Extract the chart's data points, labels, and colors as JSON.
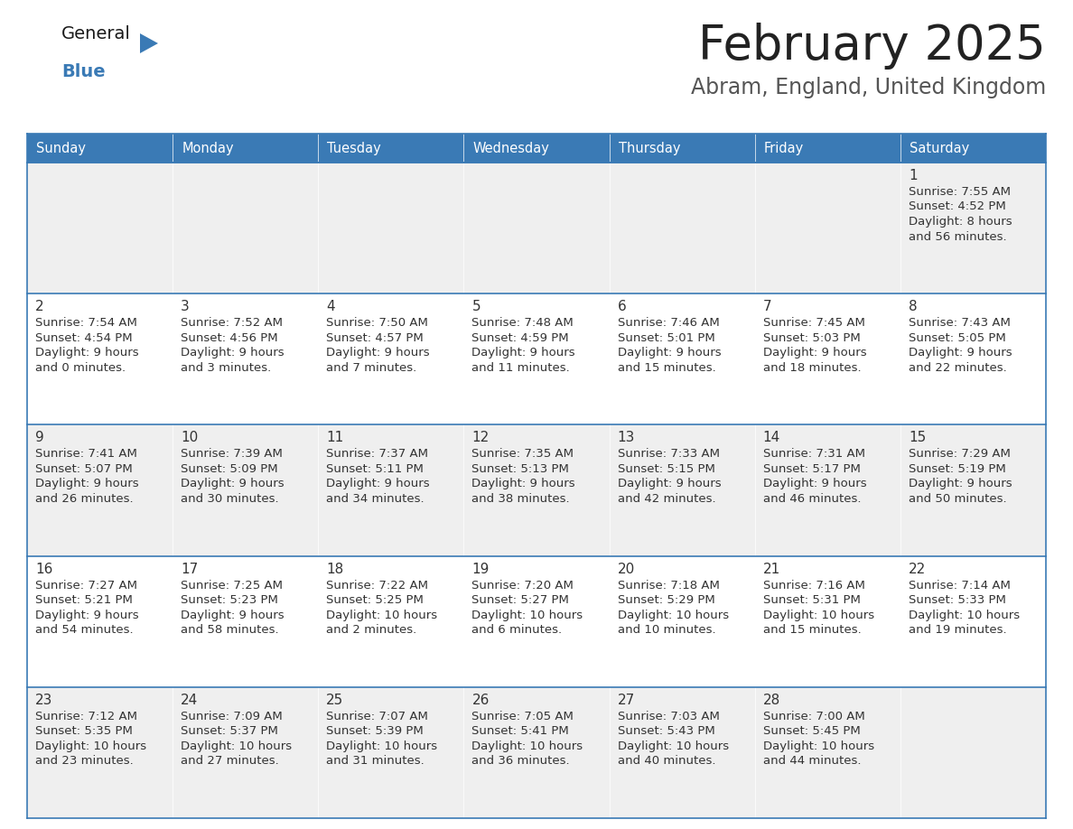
{
  "title": "February 2025",
  "subtitle": "Abram, England, United Kingdom",
  "days_of_week": [
    "Sunday",
    "Monday",
    "Tuesday",
    "Wednesday",
    "Thursday",
    "Friday",
    "Saturday"
  ],
  "header_bg": "#3a7ab5",
  "header_text": "#ffffff",
  "row_bg_odd": "#efefef",
  "row_bg_even": "#ffffff",
  "border_color": "#3a7ab5",
  "day_number_color": "#333333",
  "cell_text_color": "#333333",
  "title_color": "#222222",
  "subtitle_color": "#555555",
  "logo_general_color": "#1a1a1a",
  "logo_blue_color": "#3a7ab5",
  "calendar": [
    [
      null,
      null,
      null,
      null,
      null,
      null,
      1
    ],
    [
      2,
      3,
      4,
      5,
      6,
      7,
      8
    ],
    [
      9,
      10,
      11,
      12,
      13,
      14,
      15
    ],
    [
      16,
      17,
      18,
      19,
      20,
      21,
      22
    ],
    [
      23,
      24,
      25,
      26,
      27,
      28,
      null
    ]
  ],
  "cell_data": {
    "1": {
      "sunrise": "7:55 AM",
      "sunset": "4:52 PM",
      "daylight_h": "8 hours",
      "daylight_m": "and 56 minutes."
    },
    "2": {
      "sunrise": "7:54 AM",
      "sunset": "4:54 PM",
      "daylight_h": "9 hours",
      "daylight_m": "and 0 minutes."
    },
    "3": {
      "sunrise": "7:52 AM",
      "sunset": "4:56 PM",
      "daylight_h": "9 hours",
      "daylight_m": "and 3 minutes."
    },
    "4": {
      "sunrise": "7:50 AM",
      "sunset": "4:57 PM",
      "daylight_h": "9 hours",
      "daylight_m": "and 7 minutes."
    },
    "5": {
      "sunrise": "7:48 AM",
      "sunset": "4:59 PM",
      "daylight_h": "9 hours",
      "daylight_m": "and 11 minutes."
    },
    "6": {
      "sunrise": "7:46 AM",
      "sunset": "5:01 PM",
      "daylight_h": "9 hours",
      "daylight_m": "and 15 minutes."
    },
    "7": {
      "sunrise": "7:45 AM",
      "sunset": "5:03 PM",
      "daylight_h": "9 hours",
      "daylight_m": "and 18 minutes."
    },
    "8": {
      "sunrise": "7:43 AM",
      "sunset": "5:05 PM",
      "daylight_h": "9 hours",
      "daylight_m": "and 22 minutes."
    },
    "9": {
      "sunrise": "7:41 AM",
      "sunset": "5:07 PM",
      "daylight_h": "9 hours",
      "daylight_m": "and 26 minutes."
    },
    "10": {
      "sunrise": "7:39 AM",
      "sunset": "5:09 PM",
      "daylight_h": "9 hours",
      "daylight_m": "and 30 minutes."
    },
    "11": {
      "sunrise": "7:37 AM",
      "sunset": "5:11 PM",
      "daylight_h": "9 hours",
      "daylight_m": "and 34 minutes."
    },
    "12": {
      "sunrise": "7:35 AM",
      "sunset": "5:13 PM",
      "daylight_h": "9 hours",
      "daylight_m": "and 38 minutes."
    },
    "13": {
      "sunrise": "7:33 AM",
      "sunset": "5:15 PM",
      "daylight_h": "9 hours",
      "daylight_m": "and 42 minutes."
    },
    "14": {
      "sunrise": "7:31 AM",
      "sunset": "5:17 PM",
      "daylight_h": "9 hours",
      "daylight_m": "and 46 minutes."
    },
    "15": {
      "sunrise": "7:29 AM",
      "sunset": "5:19 PM",
      "daylight_h": "9 hours",
      "daylight_m": "and 50 minutes."
    },
    "16": {
      "sunrise": "7:27 AM",
      "sunset": "5:21 PM",
      "daylight_h": "9 hours",
      "daylight_m": "and 54 minutes."
    },
    "17": {
      "sunrise": "7:25 AM",
      "sunset": "5:23 PM",
      "daylight_h": "9 hours",
      "daylight_m": "and 58 minutes."
    },
    "18": {
      "sunrise": "7:22 AM",
      "sunset": "5:25 PM",
      "daylight_h": "10 hours",
      "daylight_m": "and 2 minutes."
    },
    "19": {
      "sunrise": "7:20 AM",
      "sunset": "5:27 PM",
      "daylight_h": "10 hours",
      "daylight_m": "and 6 minutes."
    },
    "20": {
      "sunrise": "7:18 AM",
      "sunset": "5:29 PM",
      "daylight_h": "10 hours",
      "daylight_m": "and 10 minutes."
    },
    "21": {
      "sunrise": "7:16 AM",
      "sunset": "5:31 PM",
      "daylight_h": "10 hours",
      "daylight_m": "and 15 minutes."
    },
    "22": {
      "sunrise": "7:14 AM",
      "sunset": "5:33 PM",
      "daylight_h": "10 hours",
      "daylight_m": "and 19 minutes."
    },
    "23": {
      "sunrise": "7:12 AM",
      "sunset": "5:35 PM",
      "daylight_h": "10 hours",
      "daylight_m": "and 23 minutes."
    },
    "24": {
      "sunrise": "7:09 AM",
      "sunset": "5:37 PM",
      "daylight_h": "10 hours",
      "daylight_m": "and 27 minutes."
    },
    "25": {
      "sunrise": "7:07 AM",
      "sunset": "5:39 PM",
      "daylight_h": "10 hours",
      "daylight_m": "and 31 minutes."
    },
    "26": {
      "sunrise": "7:05 AM",
      "sunset": "5:41 PM",
      "daylight_h": "10 hours",
      "daylight_m": "and 36 minutes."
    },
    "27": {
      "sunrise": "7:03 AM",
      "sunset": "5:43 PM",
      "daylight_h": "10 hours",
      "daylight_m": "and 40 minutes."
    },
    "28": {
      "sunrise": "7:00 AM",
      "sunset": "5:45 PM",
      "daylight_h": "10 hours",
      "daylight_m": "and 44 minutes."
    }
  }
}
